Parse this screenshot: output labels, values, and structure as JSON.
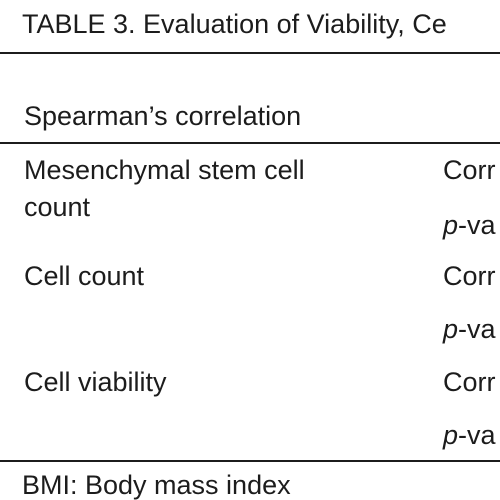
{
  "table": {
    "caption": "TABLE 3. Evaluation of Viability, Ce",
    "header_label": "Spearman’s correlation",
    "rows": [
      {
        "label_line1": "Mesenchymal stem cell",
        "label_line2": "count",
        "stat1": "Corr",
        "stat2_prefix": "p",
        "stat2_suffix": "-va"
      },
      {
        "label_line1": "Cell count",
        "stat1": "Corr",
        "stat2_prefix": "p",
        "stat2_suffix": "-va"
      },
      {
        "label_line1": "Cell viability",
        "stat1": "Corr",
        "stat2_prefix": "p",
        "stat2_suffix": "-va"
      }
    ],
    "footnote": "BMI: Body mass index"
  }
}
